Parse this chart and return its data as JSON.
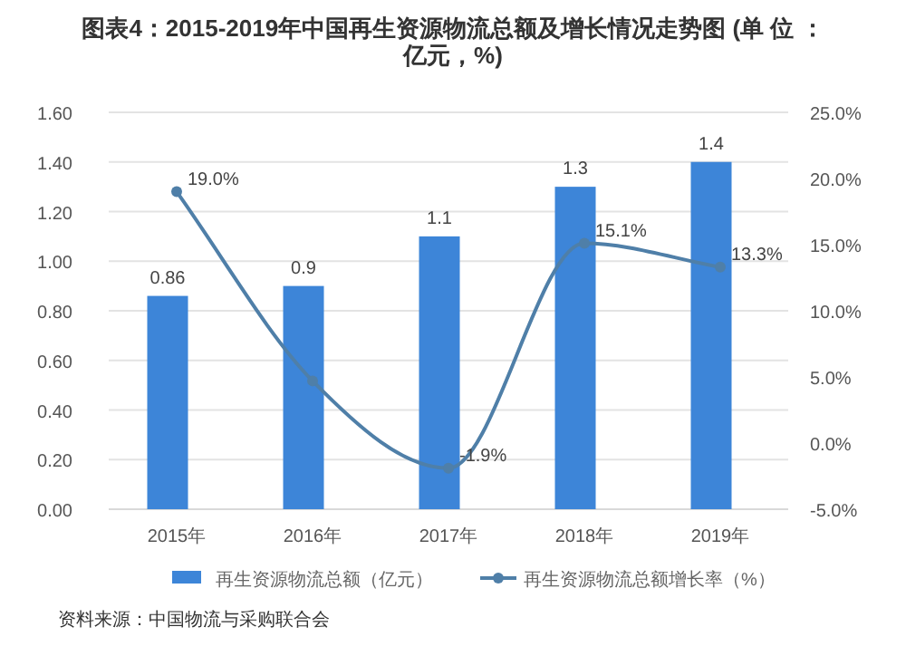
{
  "chart_data": {
    "type": "bar",
    "title": "图表4：2015-2019年中国再生资源物流总额及增长情况走势图 (单 位 ：亿元，%)",
    "categories": [
      "2015年",
      "2016年",
      "2017年",
      "2018年",
      "2019年"
    ],
    "series": [
      {
        "name": "再生资源物流总额（亿元）",
        "color": "#3d85d8",
        "values": [
          0.86,
          0.9,
          1.1,
          1.3,
          1.4
        ],
        "value_labels": [
          "0.86",
          "0.9",
          "1.1",
          "1.3",
          "1.4"
        ]
      },
      {
        "name": "再生资源物流总额增长率（%）",
        "type": "line",
        "axis": "y2",
        "color": "#4f7fa8",
        "marker": "circle",
        "values": [
          19.0,
          4.7,
          -1.9,
          15.1,
          13.3
        ],
        "value_labels": [
          "19.0%",
          null,
          "-1.9%",
          "15.1%",
          "13.3%"
        ]
      }
    ],
    "ylim": [
      0,
      1.6
    ],
    "yticks": [
      {
        "value": 0,
        "label": "0.00"
      },
      {
        "value": 0.2,
        "label": "0.20"
      },
      {
        "value": 0.4,
        "label": "0.40"
      },
      {
        "value": 0.6,
        "label": "0.60"
      },
      {
        "value": 0.8,
        "label": "0.80"
      },
      {
        "value": 1.0,
        "label": "1.00"
      },
      {
        "value": 1.2,
        "label": "1.20"
      },
      {
        "value": 1.4,
        "label": "1.40"
      },
      {
        "value": 1.6,
        "label": "1.60"
      }
    ],
    "y2lim": [
      -5,
      25
    ],
    "y2ticks": [
      {
        "value": -5,
        "label": "-5.0%"
      },
      {
        "value": 0,
        "label": "0.0%"
      },
      {
        "value": 5,
        "label": "5.0%"
      },
      {
        "value": 10,
        "label": "10.0%"
      },
      {
        "value": 15,
        "label": "15.0%"
      },
      {
        "value": 20,
        "label": "20.0%"
      },
      {
        "value": 25,
        "label": "25.0%"
      }
    ],
    "grid": "y",
    "legend": "bottom",
    "annotations": [
      "资料来源：中国物流与采购联合会"
    ]
  }
}
